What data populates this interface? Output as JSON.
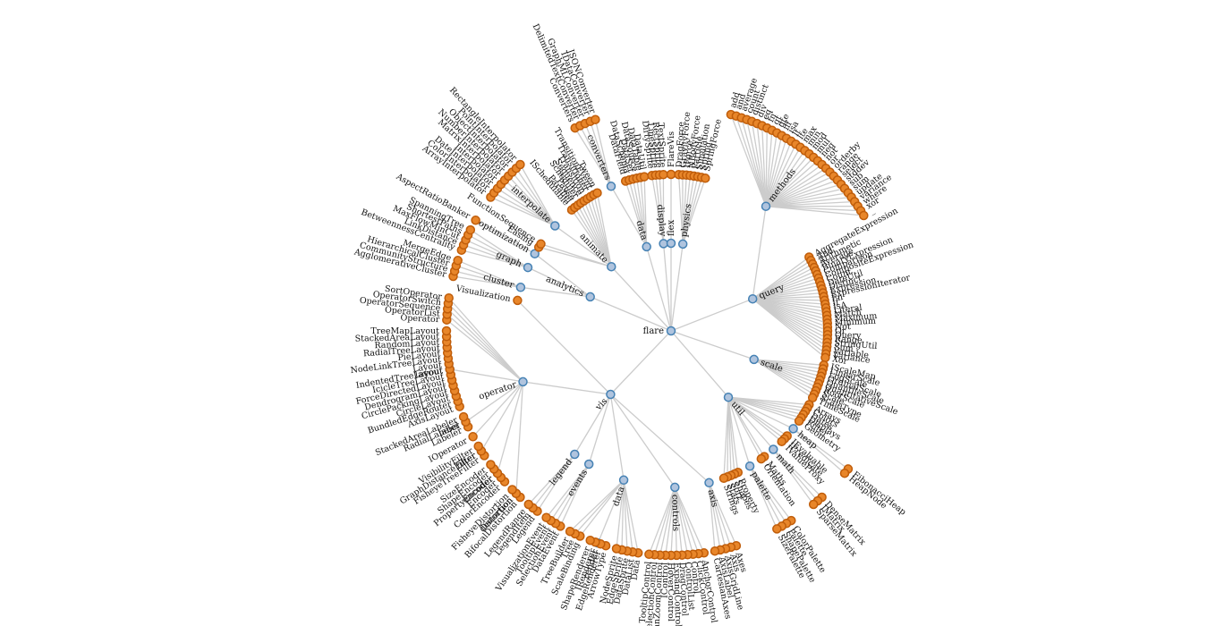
{
  "tree": {
    "name": "flare",
    "children": [
      {
        "name": "query",
        "children": [
          {
            "name": "methods",
            "children": [
              {
                "name": "add"
              },
              {
                "name": "and"
              },
              {
                "name": "average"
              },
              {
                "name": "count"
              },
              {
                "name": "distinct"
              },
              {
                "name": "div"
              },
              {
                "name": "eq"
              },
              {
                "name": "fn"
              },
              {
                "name": "gt"
              },
              {
                "name": "gte"
              },
              {
                "name": "iff"
              },
              {
                "name": "isa"
              },
              {
                "name": "lt"
              },
              {
                "name": "lte"
              },
              {
                "name": "max"
              },
              {
                "name": "min"
              },
              {
                "name": "mod"
              },
              {
                "name": "mul"
              },
              {
                "name": "neq"
              },
              {
                "name": "not"
              },
              {
                "name": "or"
              },
              {
                "name": "orderby"
              },
              {
                "name": "range"
              },
              {
                "name": "select"
              },
              {
                "name": "stddev"
              },
              {
                "name": "sub"
              },
              {
                "name": "sum"
              },
              {
                "name": "update"
              },
              {
                "name": "variance"
              },
              {
                "name": "where"
              },
              {
                "name": "xor"
              },
              {
                "name": "_"
              }
            ]
          },
          {
            "name": "AggregateExpression"
          },
          {
            "name": "And"
          },
          {
            "name": "Arithmetic"
          },
          {
            "name": "Average"
          },
          {
            "name": "BinaryExpression"
          },
          {
            "name": "Comparison"
          },
          {
            "name": "CompositeExpression"
          },
          {
            "name": "Count"
          },
          {
            "name": "DateUtil"
          },
          {
            "name": "Distinct"
          },
          {
            "name": "Expression"
          },
          {
            "name": "ExpressionIterator"
          },
          {
            "name": "Fn"
          },
          {
            "name": "If"
          },
          {
            "name": "IsA"
          },
          {
            "name": "Literal"
          },
          {
            "name": "Match"
          },
          {
            "name": "Maximum"
          },
          {
            "name": "Minimum"
          },
          {
            "name": "Not"
          },
          {
            "name": "Or"
          },
          {
            "name": "Query"
          },
          {
            "name": "Range"
          },
          {
            "name": "StringUtil"
          },
          {
            "name": "Sum"
          },
          {
            "name": "Variable"
          },
          {
            "name": "Variance"
          },
          {
            "name": "Xor"
          }
        ]
      },
      {
        "name": "scale",
        "children": [
          {
            "name": "IScaleMap"
          },
          {
            "name": "LinearScale"
          },
          {
            "name": "LogScale"
          },
          {
            "name": "OrdinalScale"
          },
          {
            "name": "QuantileScale"
          },
          {
            "name": "QuantitativeScale"
          },
          {
            "name": "RootScale"
          },
          {
            "name": "Scale"
          },
          {
            "name": "ScaleType"
          },
          {
            "name": "TimeScale"
          }
        ]
      },
      {
        "name": "util",
        "children": [
          {
            "name": "Arrays"
          },
          {
            "name": "Colors"
          },
          {
            "name": "Dates"
          },
          {
            "name": "Displays"
          },
          {
            "name": "Filter"
          },
          {
            "name": "Geometry"
          },
          {
            "name": "heap",
            "children": [
              {
                "name": "FibonacciHeap"
              },
              {
                "name": "HeapNode"
              }
            ]
          },
          {
            "name": "IEvaluable"
          },
          {
            "name": "IPredicate"
          },
          {
            "name": "IValueProxy"
          },
          {
            "name": "math",
            "children": [
              {
                "name": "DenseMatrix"
              },
              {
                "name": "IMatrix"
              },
              {
                "name": "SparseMatrix"
              }
            ]
          },
          {
            "name": "Maths"
          },
          {
            "name": "Orientation"
          },
          {
            "name": "palette",
            "children": [
              {
                "name": "ColorPalette"
              },
              {
                "name": "Palette"
              },
              {
                "name": "ShapePalette"
              },
              {
                "name": "SizePalette"
              }
            ]
          },
          {
            "name": "Property"
          },
          {
            "name": "Shapes"
          },
          {
            "name": "Sort"
          },
          {
            "name": "Stats"
          },
          {
            "name": "Strings"
          }
        ]
      },
      {
        "name": "vis",
        "children": [
          {
            "name": "axis",
            "children": [
              {
                "name": "Axes"
              },
              {
                "name": "Axis"
              },
              {
                "name": "AxisGridLine"
              },
              {
                "name": "AxisLabel"
              },
              {
                "name": "CartesianAxes"
              }
            ]
          },
          {
            "name": "controls",
            "children": [
              {
                "name": "AnchorControl"
              },
              {
                "name": "ClickControl"
              },
              {
                "name": "Control"
              },
              {
                "name": "ControlList"
              },
              {
                "name": "DragControl"
              },
              {
                "name": "ExpandControl"
              },
              {
                "name": "HoverControl"
              },
              {
                "name": "IControl"
              },
              {
                "name": "PanZoomControl"
              },
              {
                "name": "SelectionControl"
              },
              {
                "name": "TooltipControl"
              }
            ]
          },
          {
            "name": "data",
            "children": [
              {
                "name": "Data"
              },
              {
                "name": "DataList"
              },
              {
                "name": "DataSprite"
              },
              {
                "name": "EdgeSprite"
              },
              {
                "name": "NodeSprite"
              },
              {
                "name": "render",
                "children": [
                  {
                    "name": "ArrowType"
                  },
                  {
                    "name": "EdgeRenderer"
                  },
                  {
                    "name": "IRenderer"
                  },
                  {
                    "name": "ShapeRenderer"
                  }
                ]
              },
              {
                "name": "ScaleBinding"
              },
              {
                "name": "Tree"
              },
              {
                "name": "TreeBuilder"
              }
            ]
          },
          {
            "name": "events",
            "children": [
              {
                "name": "DataEvent"
              },
              {
                "name": "SelectionEvent"
              },
              {
                "name": "TooltipEvent"
              },
              {
                "name": "VisualizationEvent"
              }
            ]
          },
          {
            "name": "legend",
            "children": [
              {
                "name": "Legend"
              },
              {
                "name": "LegendItem"
              },
              {
                "name": "LegendRange"
              }
            ]
          },
          {
            "name": "operator",
            "children": [
              {
                "name": "distortion",
                "children": [
                  {
                    "name": "BifocalDistortion"
                  },
                  {
                    "name": "Distortion"
                  },
                  {
                    "name": "FisheyeDistortion"
                  }
                ]
              },
              {
                "name": "encoder",
                "children": [
                  {
                    "name": "ColorEncoder"
                  },
                  {
                    "name": "Encoder"
                  },
                  {
                    "name": "PropertyEncoder"
                  },
                  {
                    "name": "ShapeEncoder"
                  },
                  {
                    "name": "SizeEncoder"
                  }
                ]
              },
              {
                "name": "filter",
                "children": [
                  {
                    "name": "FisheyeTreeFilter"
                  },
                  {
                    "name": "GraphDistanceFilter"
                  },
                  {
                    "name": "VisibilityFilter"
                  }
                ]
              },
              {
                "name": "IOperator"
              },
              {
                "name": "label",
                "children": [
                  {
                    "name": "Labeler"
                  },
                  {
                    "name": "RadialLabeler"
                  },
                  {
                    "name": "StackedAreaLabeler"
                  }
                ]
              },
              {
                "name": "layout",
                "children": [
                  {
                    "name": "AxisLayout"
                  },
                  {
                    "name": "BundledEdgeRouter"
                  },
                  {
                    "name": "CircleLayout"
                  },
                  {
                    "name": "CirclePackingLayout"
                  },
                  {
                    "name": "DendrogramLayout"
                  },
                  {
                    "name": "ForceDirectedLayout"
                  },
                  {
                    "name": "IcicleTreeLayout"
                  },
                  {
                    "name": "IndentedTreeLayout"
                  },
                  {
                    "name": "Layout"
                  },
                  {
                    "name": "NodeLinkTreeLayout"
                  },
                  {
                    "name": "PieLayout"
                  },
                  {
                    "name": "RadialTreeLayout"
                  },
                  {
                    "name": "RandomLayout"
                  },
                  {
                    "name": "StackedAreaLayout"
                  },
                  {
                    "name": "TreeMapLayout"
                  }
                ]
              },
              {
                "name": "Operator"
              },
              {
                "name": "OperatorList"
              },
              {
                "name": "OperatorSequence"
              },
              {
                "name": "OperatorSwitch"
              },
              {
                "name": "SortOperator"
              }
            ]
          },
          {
            "name": "Visualization"
          }
        ]
      },
      {
        "name": "analytics",
        "children": [
          {
            "name": "cluster",
            "children": [
              {
                "name": "AgglomerativeCluster"
              },
              {
                "name": "CommunityStructure"
              },
              {
                "name": "HierarchicalCluster"
              },
              {
                "name": "MergeEdge"
              }
            ]
          },
          {
            "name": "graph",
            "children": [
              {
                "name": "BetweennessCentrality"
              },
              {
                "name": "LinkDistance"
              },
              {
                "name": "MaxFlowMinCut"
              },
              {
                "name": "ShortestPaths"
              },
              {
                "name": "SpanningTree"
              }
            ]
          },
          {
            "name": "optimization",
            "children": [
              {
                "name": "AspectRatioBanker"
              }
            ]
          }
        ]
      },
      {
        "name": "animate",
        "children": [
          {
            "name": "Easing"
          },
          {
            "name": "FunctionSequence"
          },
          {
            "name": "interpolate",
            "children": [
              {
                "name": "ArrayInterpolator"
              },
              {
                "name": "ColorInterpolator"
              },
              {
                "name": "DateInterpolator"
              },
              {
                "name": "Interpolator"
              },
              {
                "name": "MatrixInterpolator"
              },
              {
                "name": "NumberInterpolator"
              },
              {
                "name": "ObjectInterpolator"
              },
              {
                "name": "PointInterpolator"
              },
              {
                "name": "RectangleInterpolator"
              }
            ]
          },
          {
            "name": "ISchedulable"
          },
          {
            "name": "Parallel"
          },
          {
            "name": "Pause"
          },
          {
            "name": "Scheduler"
          },
          {
            "name": "Sequence"
          },
          {
            "name": "Transition"
          },
          {
            "name": "Transitioner"
          },
          {
            "name": "TransitionEvent"
          },
          {
            "name": "Tween"
          }
        ]
      },
      {
        "name": "data",
        "children": [
          {
            "name": "converters",
            "children": [
              {
                "name": "Converters"
              },
              {
                "name": "DelimitedTextConverter"
              },
              {
                "name": "GraphMLConverter"
              },
              {
                "name": "IDataConverter"
              },
              {
                "name": "JSONConverter"
              }
            ]
          },
          {
            "name": "DataField"
          },
          {
            "name": "DataSchema"
          },
          {
            "name": "DataSet"
          },
          {
            "name": "DataSource"
          },
          {
            "name": "DataTable"
          },
          {
            "name": "DataUtil"
          }
        ]
      },
      {
        "name": "display",
        "children": [
          {
            "name": "DirtySprite"
          },
          {
            "name": "LineSprite"
          },
          {
            "name": "RectSprite"
          },
          {
            "name": "TextSprite"
          }
        ]
      },
      {
        "name": "flex",
        "children": [
          {
            "name": "FlareVis"
          }
        ]
      },
      {
        "name": "physics",
        "children": [
          {
            "name": "DragForce"
          },
          {
            "name": "GravityForce"
          },
          {
            "name": "IForce"
          },
          {
            "name": "NBodyForce"
          },
          {
            "name": "Particle"
          },
          {
            "name": "Simulation"
          },
          {
            "name": "Spring"
          },
          {
            "name": "SpringForce"
          }
        ]
      }
    ]
  }
}
